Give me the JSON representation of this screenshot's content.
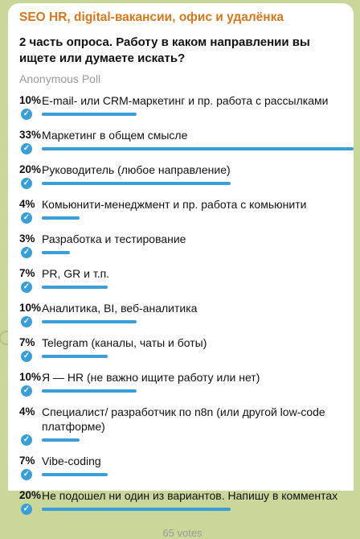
{
  "channel": {
    "title": "SEO HR, digital-вакансии, офис и удалёнка"
  },
  "poll": {
    "question": "2 часть опроса. Работу в каком направлении вы ищете или думаете искать?",
    "type": "Anonymous Poll",
    "accent_color": "#3a9fd8",
    "check_icon": "check-circle-icon",
    "options": [
      {
        "percent": "10%",
        "label": "E-mail- или CRM-маркетинг и пр. работа с рассылками",
        "share": 0.1
      },
      {
        "percent": "33%",
        "label": "Маркетинг в общем смысле",
        "share": 0.33
      },
      {
        "percent": "20%",
        "label": "Руководитель (любое направление)",
        "share": 0.2
      },
      {
        "percent": "4%",
        "label": "Комьюнити-менеджмент и пр. работа с комьюнити",
        "share": 0.04
      },
      {
        "percent": "3%",
        "label": "Разработка и тестирование",
        "share": 0.03
      },
      {
        "percent": "7%",
        "label": "PR, GR и т.п.",
        "share": 0.07
      },
      {
        "percent": "10%",
        "label": "Аналитика, BI, веб-аналитика",
        "share": 0.1
      },
      {
        "percent": "7%",
        "label": "Telegram (каналы, чаты и боты)",
        "share": 0.07
      },
      {
        "percent": "10%",
        "label": "Я — HR (не важно ищите работу или нет)",
        "share": 0.1
      },
      {
        "percent": "4%",
        "label": "Специалист/ разработчик по n8n (или другой low-code платформе)",
        "share": 0.04
      },
      {
        "percent": "7%",
        "label": "Vibe-coding",
        "share": 0.07
      },
      {
        "percent": "20%",
        "label": "Не подошел ни один из вариантов. Напишу в комментах",
        "share": 0.2
      }
    ],
    "votes": "65 votes"
  }
}
